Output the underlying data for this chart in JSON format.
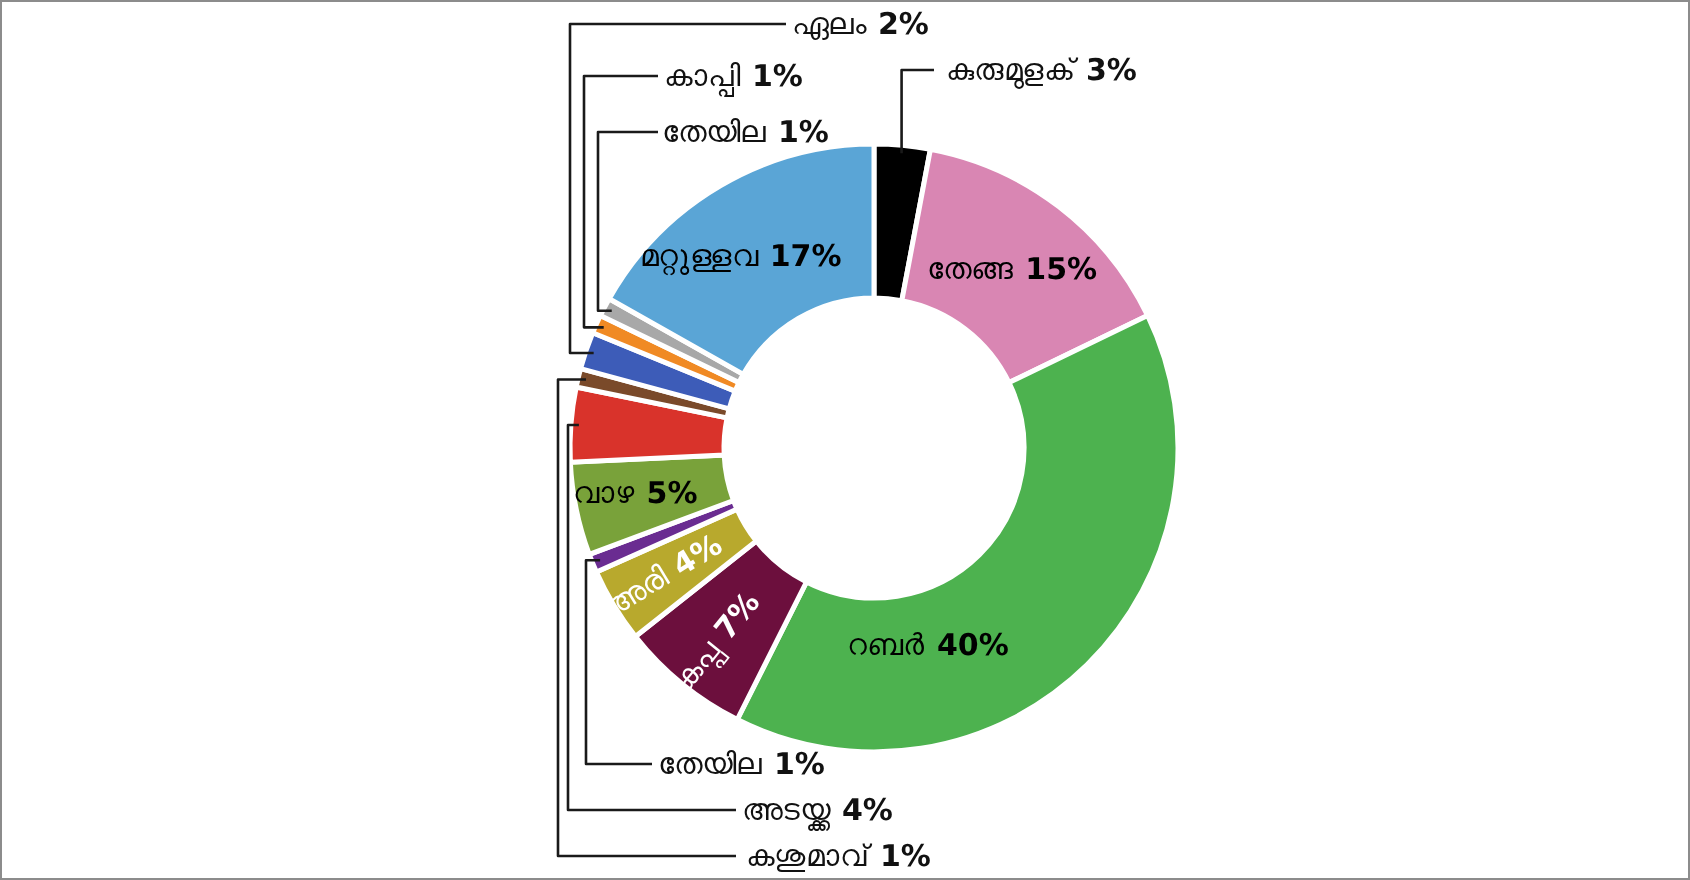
{
  "chart_data": {
    "type": "donut",
    "categories": [
      "കുരുമുളക്",
      "തേങ്ങ",
      "റബർ",
      "കപ്പ",
      "അരി",
      "തേയില",
      "വാഴ",
      "അടയ്ക്ക",
      "കശുമാവ്",
      "ഏലം",
      "കാപ്പി",
      "തേയില",
      "മറ്റുള്ളവ"
    ],
    "values": [
      3,
      15,
      40,
      7,
      4,
      1,
      5,
      4,
      1,
      2,
      1,
      1,
      17
    ],
    "colors": [
      "#000000",
      "#d986b3",
      "#4db24f",
      "#6c0f3d",
      "#b8a92d",
      "#6a2c91",
      "#79a23a",
      "#d9332b",
      "#7a4a2a",
      "#3d5cb8",
      "#f08a24",
      "#a8a8a8",
      "#5aa5d6"
    ],
    "value_labels": [
      "3%",
      "15%",
      "40%",
      "7%",
      "4%",
      "1%",
      "5%",
      "4%",
      "1%",
      "2%",
      "1%",
      "1%",
      "17%"
    ]
  }
}
